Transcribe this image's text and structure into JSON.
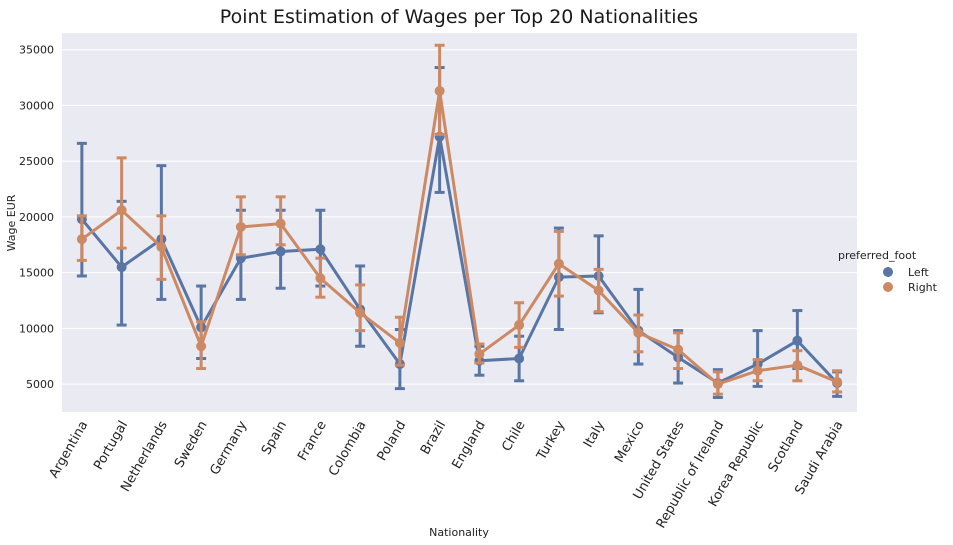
{
  "chart_data": {
    "type": "line",
    "title": "Point Estimation of Wages per Top 20 Nationalities",
    "xlabel": "Nationality",
    "ylabel": "Wage EUR",
    "categories": [
      "Argentina",
      "Portugal",
      "Netherlands",
      "Sweden",
      "Germany",
      "Spain",
      "France",
      "Colombia",
      "Poland",
      "Brazil",
      "England",
      "Chile",
      "Turkey",
      "Italy",
      "Mexico",
      "United States",
      "Republic of Ireland",
      "Korea Republic",
      "Scotland",
      "Saudi Arabia"
    ],
    "yticks": [
      5000,
      10000,
      15000,
      20000,
      25000,
      30000,
      35000
    ],
    "ylim": [
      2500,
      36500
    ],
    "grid": true,
    "legend": {
      "title": "preferred_foot",
      "placement": "right"
    },
    "series": [
      {
        "name": "Left",
        "color": "#5875a4",
        "values": [
          19800,
          15500,
          18000,
          10100,
          16300,
          16900,
          17100,
          11700,
          6800,
          27200,
          7100,
          7300,
          14600,
          14700,
          9800,
          7400,
          5100,
          6800,
          8900,
          5100
        ],
        "ci_low": [
          14700,
          10300,
          12600,
          7300,
          12600,
          13600,
          13800,
          8400,
          4600,
          22200,
          5800,
          5300,
          9900,
          11400,
          6800,
          5100,
          3800,
          4800,
          6400,
          3900
        ],
        "ci_high": [
          26600,
          21400,
          24600,
          13800,
          20600,
          20600,
          20600,
          15600,
          9900,
          33400,
          8400,
          9300,
          19000,
          18300,
          13500,
          9800,
          6300,
          9800,
          11600,
          6100
        ]
      },
      {
        "name": "Right",
        "color": "#cc8963",
        "values": [
          18000,
          20600,
          17300,
          8400,
          19100,
          19400,
          14500,
          11400,
          8700,
          31300,
          7700,
          10300,
          15800,
          13400,
          9600,
          8100,
          5000,
          6200,
          6700,
          5200
        ],
        "ci_low": [
          16100,
          17200,
          14400,
          6400,
          16600,
          17500,
          12800,
          9800,
          6700,
          27400,
          6900,
          8300,
          12900,
          11500,
          7900,
          6400,
          4100,
          5300,
          5300,
          4300
        ],
        "ci_high": [
          20100,
          25300,
          20100,
          10600,
          21800,
          21800,
          16300,
          13900,
          11000,
          35400,
          8600,
          12300,
          18700,
          15300,
          11200,
          9600,
          6100,
          7200,
          8000,
          6200
        ]
      }
    ]
  }
}
